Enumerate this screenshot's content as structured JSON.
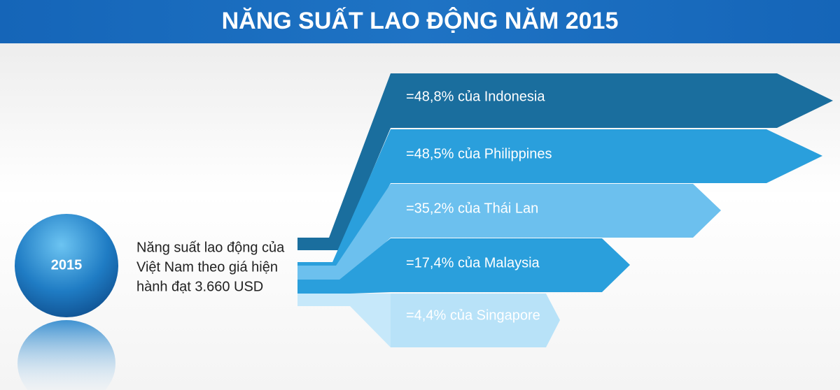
{
  "header": {
    "title": "NĂNG SUẤT LAO ĐỘNG NĂM 2015"
  },
  "year": "2015",
  "description": [
    "Năng suất lao động của",
    "Việt Nam theo giá hiện",
    "hành đạt 3.660 USD"
  ],
  "items": [
    "=48,8% của Indonesia",
    "=48,5% của Philippines",
    "=35,2% của Thái Lan",
    "=17,4% của Malaysia",
    "=4,4% của Singapore"
  ]
}
